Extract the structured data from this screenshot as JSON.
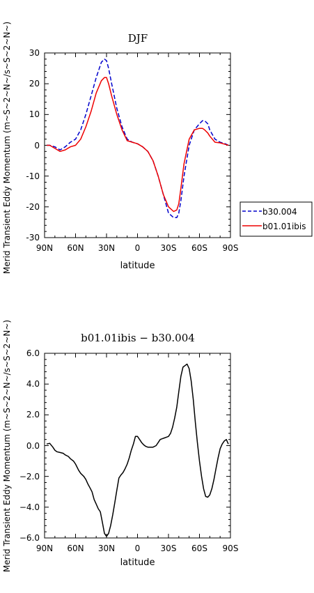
{
  "chart_data": [
    {
      "type": "line",
      "title": "DJF",
      "xlabel": "latitude",
      "ylabel": "Merid Transient Eddy Momentum (m~S~2~N~/s~S~2~N~)",
      "x_tick_labels": [
        "90N",
        "60N",
        "30N",
        "0",
        "30S",
        "60S",
        "90S"
      ],
      "xlim": [
        90,
        -90
      ],
      "ylim": [
        -30,
        30
      ],
      "y_ticks": [
        30,
        20,
        10,
        0,
        -10,
        -20,
        -30
      ],
      "legend_position": "right",
      "series": [
        {
          "name": "b30.004",
          "color": "#0000cc",
          "dash": "dashed",
          "x": [
            88,
            85,
            80,
            75,
            70,
            65,
            60,
            55,
            50,
            45,
            40,
            35,
            32,
            30,
            28,
            25,
            20,
            15,
            10,
            5,
            0,
            -5,
            -10,
            -15,
            -20,
            -25,
            -30,
            -35,
            -38,
            -40,
            -42,
            -45,
            -50,
            -55,
            -60,
            -63,
            -65,
            -68,
            -70,
            -75,
            -80,
            -85,
            -88
          ],
          "y": [
            0,
            0,
            -0.5,
            -1.5,
            -0.5,
            1,
            2,
            5,
            10,
            16,
            22,
            27,
            28,
            27.5,
            25,
            20,
            12,
            6,
            2,
            1,
            0.5,
            -0.5,
            -2,
            -5,
            -10,
            -16,
            -22,
            -23.5,
            -23.5,
            -22,
            -18,
            -10,
            0,
            5,
            7,
            8,
            8,
            7,
            5,
            2,
            1,
            0.5,
            0
          ]
        },
        {
          "name": "b01.01ibis",
          "color": "#ee0000",
          "dash": "solid",
          "x": [
            88,
            85,
            80,
            75,
            70,
            65,
            60,
            55,
            50,
            45,
            40,
            35,
            32,
            30,
            28,
            25,
            20,
            15,
            10,
            5,
            0,
            -5,
            -10,
            -15,
            -20,
            -25,
            -30,
            -35,
            -38,
            -40,
            -42,
            -45,
            -50,
            -55,
            -60,
            -63,
            -65,
            -68,
            -70,
            -75,
            -80,
            -85,
            -88
          ],
          "y": [
            0,
            0,
            -1,
            -2,
            -1.5,
            -0.5,
            0,
            2,
            6,
            11,
            17,
            21,
            22,
            22,
            20,
            16,
            10,
            5,
            1.5,
            1,
            0.5,
            -0.5,
            -2,
            -5,
            -10,
            -16,
            -20,
            -21.5,
            -21,
            -19,
            -14,
            -6,
            2,
            5,
            5.5,
            5.5,
            5,
            4,
            3,
            1,
            0.8,
            0.3,
            0
          ]
        }
      ]
    },
    {
      "type": "line",
      "title": "b01.01ibis − b30.004",
      "xlabel": "latitude",
      "ylabel": "Merid Transient Eddy Momentum (m~S~2~N~/s~S~2~N~)",
      "x_tick_labels": [
        "90N",
        "60N",
        "30N",
        "0",
        "30S",
        "60S",
        "90S"
      ],
      "xlim": [
        90,
        -90
      ],
      "ylim": [
        -6,
        6
      ],
      "y_tick_labels": [
        "6.0",
        "4.0",
        "2.0",
        "0.0",
        "−2.0",
        "−4.0",
        "−6.0"
      ],
      "series": [
        {
          "name": "",
          "color": "#000000",
          "dash": "solid",
          "x": [
            88,
            85,
            82,
            80,
            78,
            75,
            72,
            70,
            67,
            65,
            62,
            60,
            57,
            55,
            52,
            50,
            48,
            46,
            44,
            42,
            40,
            38,
            36,
            34,
            32,
            30,
            28,
            26,
            24,
            22,
            20,
            18,
            16,
            14,
            12,
            10,
            8,
            6,
            4,
            2,
            0,
            -2,
            -4,
            -6,
            -8,
            -10,
            -13,
            -15,
            -18,
            -20,
            -22,
            -24,
            -26,
            -28,
            -30,
            -32,
            -34,
            -36,
            -38,
            -40,
            -42,
            -44,
            -46,
            -48,
            -50,
            -52,
            -54,
            -56,
            -58,
            -60,
            -62,
            -64,
            -66,
            -68,
            -70,
            -72,
            -74,
            -76,
            -78,
            -80,
            -82,
            -84,
            -86,
            -88
          ],
          "y": [
            0.1,
            0.15,
            -0.1,
            -0.3,
            -0.4,
            -0.45,
            -0.5,
            -0.6,
            -0.7,
            -0.85,
            -1.0,
            -1.2,
            -1.6,
            -1.8,
            -2.0,
            -2.2,
            -2.5,
            -2.75,
            -3.0,
            -3.5,
            -3.8,
            -4.1,
            -4.3,
            -5.0,
            -5.7,
            -5.9,
            -5.7,
            -5.2,
            -4.5,
            -3.7,
            -2.9,
            -2.1,
            -1.9,
            -1.75,
            -1.5,
            -1.2,
            -0.8,
            -0.3,
            0.1,
            0.6,
            0.6,
            0.4,
            0.2,
            0.05,
            -0.05,
            -0.1,
            -0.1,
            -0.1,
            0.0,
            0.2,
            0.4,
            0.45,
            0.5,
            0.55,
            0.6,
            0.8,
            1.2,
            1.8,
            2.5,
            3.5,
            4.5,
            5.1,
            5.2,
            5.3,
            5.0,
            4.2,
            3.0,
            1.5,
            0.2,
            -1.0,
            -2.0,
            -2.8,
            -3.3,
            -3.35,
            -3.2,
            -2.8,
            -2.2,
            -1.5,
            -0.8,
            -0.2,
            0.1,
            0.3,
            0.4,
            0.1
          ]
        }
      ]
    }
  ]
}
